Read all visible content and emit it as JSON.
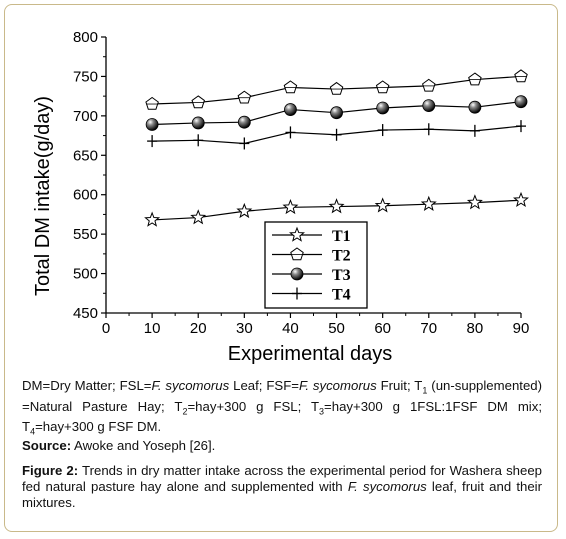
{
  "chart_data": {
    "type": "line",
    "x": [
      10,
      20,
      30,
      40,
      50,
      60,
      70,
      80,
      90
    ],
    "xlabel": "Experimental days",
    "ylabel": "Total DM intake(g/day)",
    "xlim": [
      0,
      90
    ],
    "ylim": [
      450,
      800
    ],
    "xticks": [
      "0",
      "10",
      "20",
      "30",
      "40",
      "50",
      "60",
      "70",
      "80",
      "90"
    ],
    "yticks": [
      "450",
      "500",
      "550",
      "600",
      "650",
      "700",
      "750",
      "800"
    ],
    "grid": false,
    "legend_position": "bottom-center",
    "series": [
      {
        "name": "T1",
        "marker": "star",
        "values": [
          568,
          571,
          579,
          584,
          585,
          586,
          588,
          590,
          593
        ]
      },
      {
        "name": "T2",
        "marker": "pentagon",
        "values": [
          715,
          717,
          723,
          736,
          734,
          736,
          738,
          746,
          750
        ]
      },
      {
        "name": "T3",
        "marker": "sphere",
        "values": [
          689,
          691,
          692,
          708,
          704,
          710,
          713,
          711,
          718
        ]
      },
      {
        "name": "T4",
        "marker": "plus",
        "values": [
          668,
          669,
          665,
          679,
          676,
          682,
          683,
          681,
          687
        ]
      }
    ]
  },
  "note": {
    "p1": "DM=Dry Matter; FSL=",
    "i1": "F. sycomorus",
    "p2": " Leaf; FSF=",
    "i2": "F. sycomorus",
    "p3": " Fruit; T",
    "s1": "1",
    "p4": " (un-supplemented) =Natural Pasture Hay; T",
    "s2": "2",
    "p5": "=hay+300 g FSL; T",
    "s3": "3",
    "p6": "=hay+300 g 1FSL:1FSF DM mix; T",
    "s4": "4",
    "p7": "=hay+300 g FSF DM."
  },
  "source": {
    "label": "Source:",
    "text": " Awoke and Yoseph [26]."
  },
  "figure": {
    "label": "Figure 2:",
    "t1": " Trends in dry matter intake across the experimental period for Washera sheep fed natural pasture hay alone and supplemented with ",
    "i1": "F. sycomorus",
    "t2": " leaf, fruit and their mixtures."
  }
}
